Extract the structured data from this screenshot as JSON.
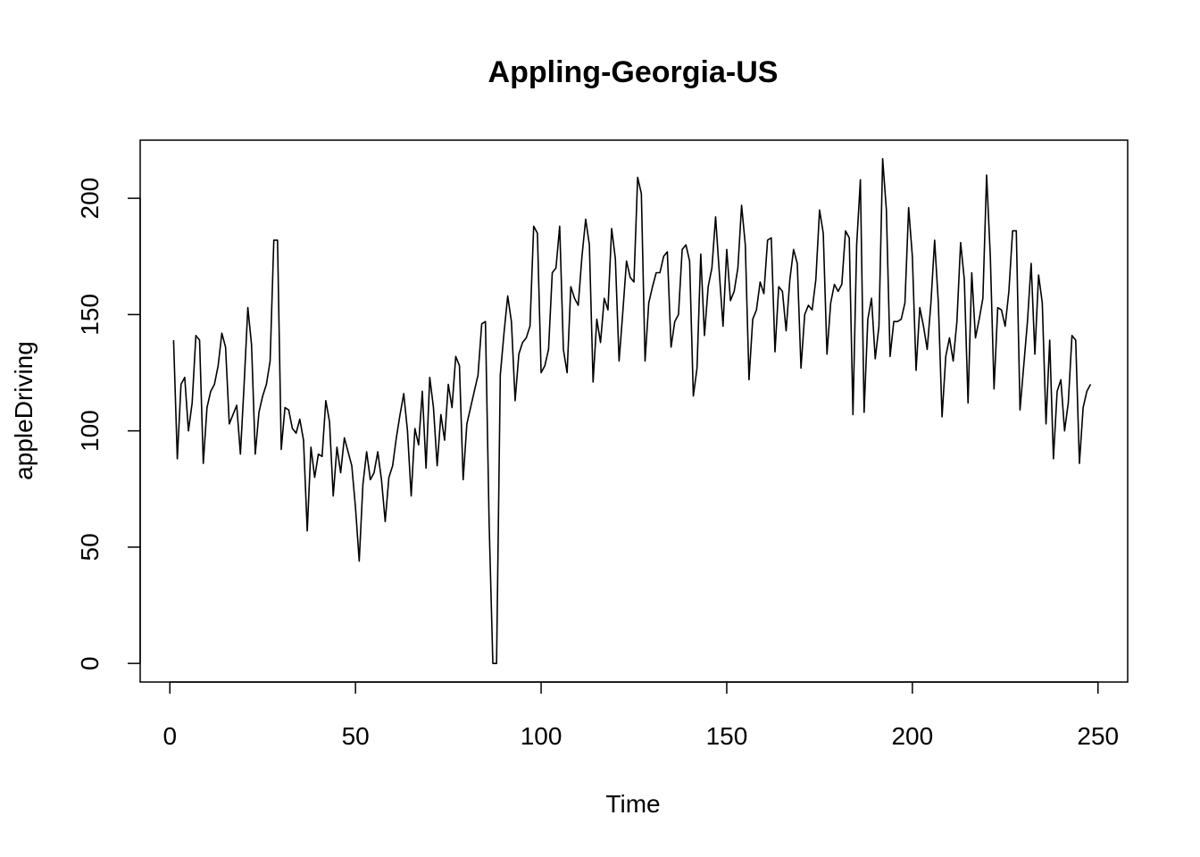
{
  "chart_data": {
    "type": "line",
    "title": "Appling-Georgia-US",
    "xlabel": "Time",
    "ylabel": "appleDriving",
    "xlim": [
      -8,
      258
    ],
    "ylim": [
      -8,
      225
    ],
    "x_ticks": [
      0,
      50,
      100,
      150,
      200,
      250
    ],
    "y_ticks": [
      0,
      50,
      100,
      150,
      200
    ],
    "grid": false,
    "legend": "none",
    "series": [
      {
        "x_start": 1,
        "values": [
          139,
          88,
          120,
          123,
          100,
          112,
          141,
          139,
          86,
          110,
          117,
          120,
          128,
          142,
          136,
          103,
          107,
          111,
          90,
          120,
          153,
          137,
          90,
          108,
          115,
          120,
          130,
          182,
          182,
          92,
          110,
          109,
          101,
          99,
          105,
          96,
          57,
          93,
          80,
          90,
          89,
          113,
          104,
          72,
          93,
          82,
          97,
          91,
          85,
          67,
          44,
          77,
          91,
          79,
          82,
          91,
          79,
          61,
          80,
          85,
          97,
          107,
          116,
          100,
          72,
          101,
          94,
          117,
          84,
          123,
          110,
          85,
          107,
          96,
          120,
          110,
          132,
          128,
          79,
          103,
          110,
          117,
          124,
          146,
          147,
          60,
          0,
          0,
          124,
          142,
          158,
          147,
          113,
          133,
          138,
          140,
          145,
          188,
          185,
          125,
          128,
          135,
          168,
          170,
          188,
          135,
          125,
          162,
          157,
          154,
          175,
          191,
          180,
          121,
          148,
          138,
          157,
          152,
          187,
          174,
          130,
          151,
          173,
          166,
          164,
          209,
          202,
          130,
          155,
          162,
          168,
          168,
          175,
          177,
          136,
          147,
          150,
          178,
          180,
          173,
          115,
          127,
          176,
          141,
          162,
          170,
          192,
          168,
          145,
          178,
          156,
          160,
          170,
          197,
          180,
          122,
          148,
          152,
          164,
          159,
          182,
          183,
          134,
          162,
          160,
          143,
          165,
          178,
          172,
          127,
          150,
          154,
          152,
          165,
          195,
          185,
          133,
          155,
          163,
          160,
          163,
          186,
          183,
          107,
          180,
          208,
          108,
          148,
          157,
          131,
          145,
          217,
          195,
          132,
          147,
          147,
          148,
          155,
          196,
          175,
          126,
          153,
          145,
          135,
          155,
          182,
          155,
          106,
          132,
          140,
          130,
          147,
          181,
          165,
          112,
          168,
          140,
          148,
          157,
          210,
          175,
          118,
          153,
          152,
          145,
          160,
          186,
          186,
          109,
          128,
          147,
          172,
          133,
          167,
          155,
          103,
          139,
          88,
          117,
          122,
          100,
          112,
          141,
          139,
          86,
          110,
          117,
          120
        ]
      }
    ]
  }
}
